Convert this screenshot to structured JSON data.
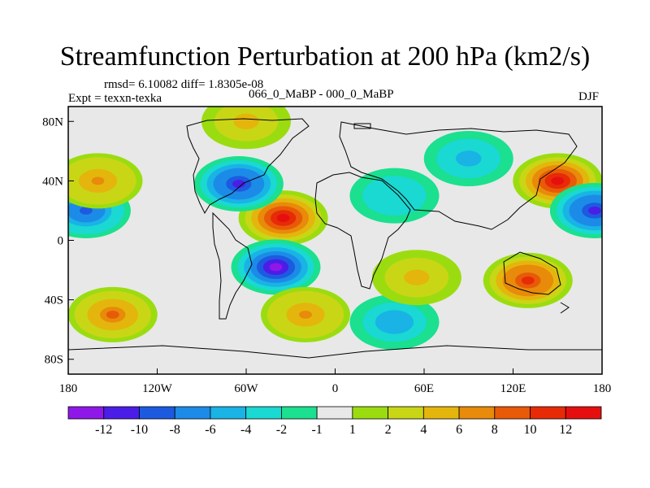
{
  "chart_data": {
    "type": "heatmap",
    "title": "Streamfunction Perturbation at 200 hPa (km2/s)",
    "left_note": "rmsd= 6.10082 diff= 1.8305e-08",
    "left_string": "Expt = texxn-texka",
    "center_string": "066_0_MaBP - 000_0_MaBP",
    "right_string": "DJF",
    "x_range": [
      -180,
      180
    ],
    "y_range": [
      -90,
      90
    ],
    "x_ticks": [
      {
        "value": -180,
        "label": "180"
      },
      {
        "value": -120,
        "label": "120W"
      },
      {
        "value": -60,
        "label": "60W"
      },
      {
        "value": 0,
        "label": "0"
      },
      {
        "value": 60,
        "label": "60E"
      },
      {
        "value": 120,
        "label": "120E"
      },
      {
        "value": 180,
        "label": "180"
      }
    ],
    "y_ticks": [
      {
        "value": 80,
        "label": "80N"
      },
      {
        "value": 40,
        "label": "40N"
      },
      {
        "value": 0,
        "label": "0"
      },
      {
        "value": -40,
        "label": "40S"
      },
      {
        "value": -80,
        "label": "80S"
      }
    ],
    "contour_levels": [
      -12,
      -10,
      -8,
      -6,
      -4,
      -2,
      -1,
      1,
      2,
      4,
      6,
      8,
      10,
      12
    ],
    "colorbar_labels": [
      "-12",
      "-10",
      "-8",
      "-6",
      "-4",
      "-2",
      "-1",
      "1",
      "2",
      "4",
      "6",
      "8",
      "10",
      "12"
    ],
    "colors": [
      "#8f18e8",
      "#4a1ee6",
      "#1c5be0",
      "#1c8be8",
      "#19b3e6",
      "#1ad8d2",
      "#1ae08f",
      "#e8e8e8",
      "#9bdc10",
      "#c9d616",
      "#e4b60d",
      "#e88a0a",
      "#e85a08",
      "#e62b06",
      "#e60f0f"
    ],
    "features": [
      {
        "name": "tropical-high-atlantic",
        "lon": -35,
        "lat": 15,
        "value": 13
      },
      {
        "name": "s-atlantic-low",
        "lon": -40,
        "lat": -18,
        "value": -13
      },
      {
        "name": "n-america-low",
        "lon": -65,
        "lat": 38,
        "value": -11
      },
      {
        "name": "w-pacific-high",
        "lon": 150,
        "lat": 40,
        "value": 13
      },
      {
        "name": "e-pacific-low",
        "lon": -168,
        "lat": 20,
        "value": -9
      },
      {
        "name": "c-pacific-low",
        "lon": 175,
        "lat": 20,
        "value": -11
      },
      {
        "name": "australia-high",
        "lon": 130,
        "lat": -27,
        "value": 11
      },
      {
        "name": "s-pacific-high",
        "lon": -150,
        "lat": -50,
        "value": 8
      },
      {
        "name": "southern-ocean-low",
        "lon": 40,
        "lat": -55,
        "value": -6
      },
      {
        "name": "arctic-high",
        "lon": -60,
        "lat": 80,
        "value": 5
      },
      {
        "name": "n-pacific-high",
        "lon": -160,
        "lat": 40,
        "value": 6
      },
      {
        "name": "eurasia-low",
        "lon": 90,
        "lat": 55,
        "value": -5
      },
      {
        "name": "c-asia-low",
        "lon": 40,
        "lat": 30,
        "value": -4
      },
      {
        "name": "s-indian-high",
        "lon": 55,
        "lat": -25,
        "value": 5
      },
      {
        "name": "s-atlantic-high",
        "lon": -20,
        "lat": -50,
        "value": 6
      }
    ]
  }
}
